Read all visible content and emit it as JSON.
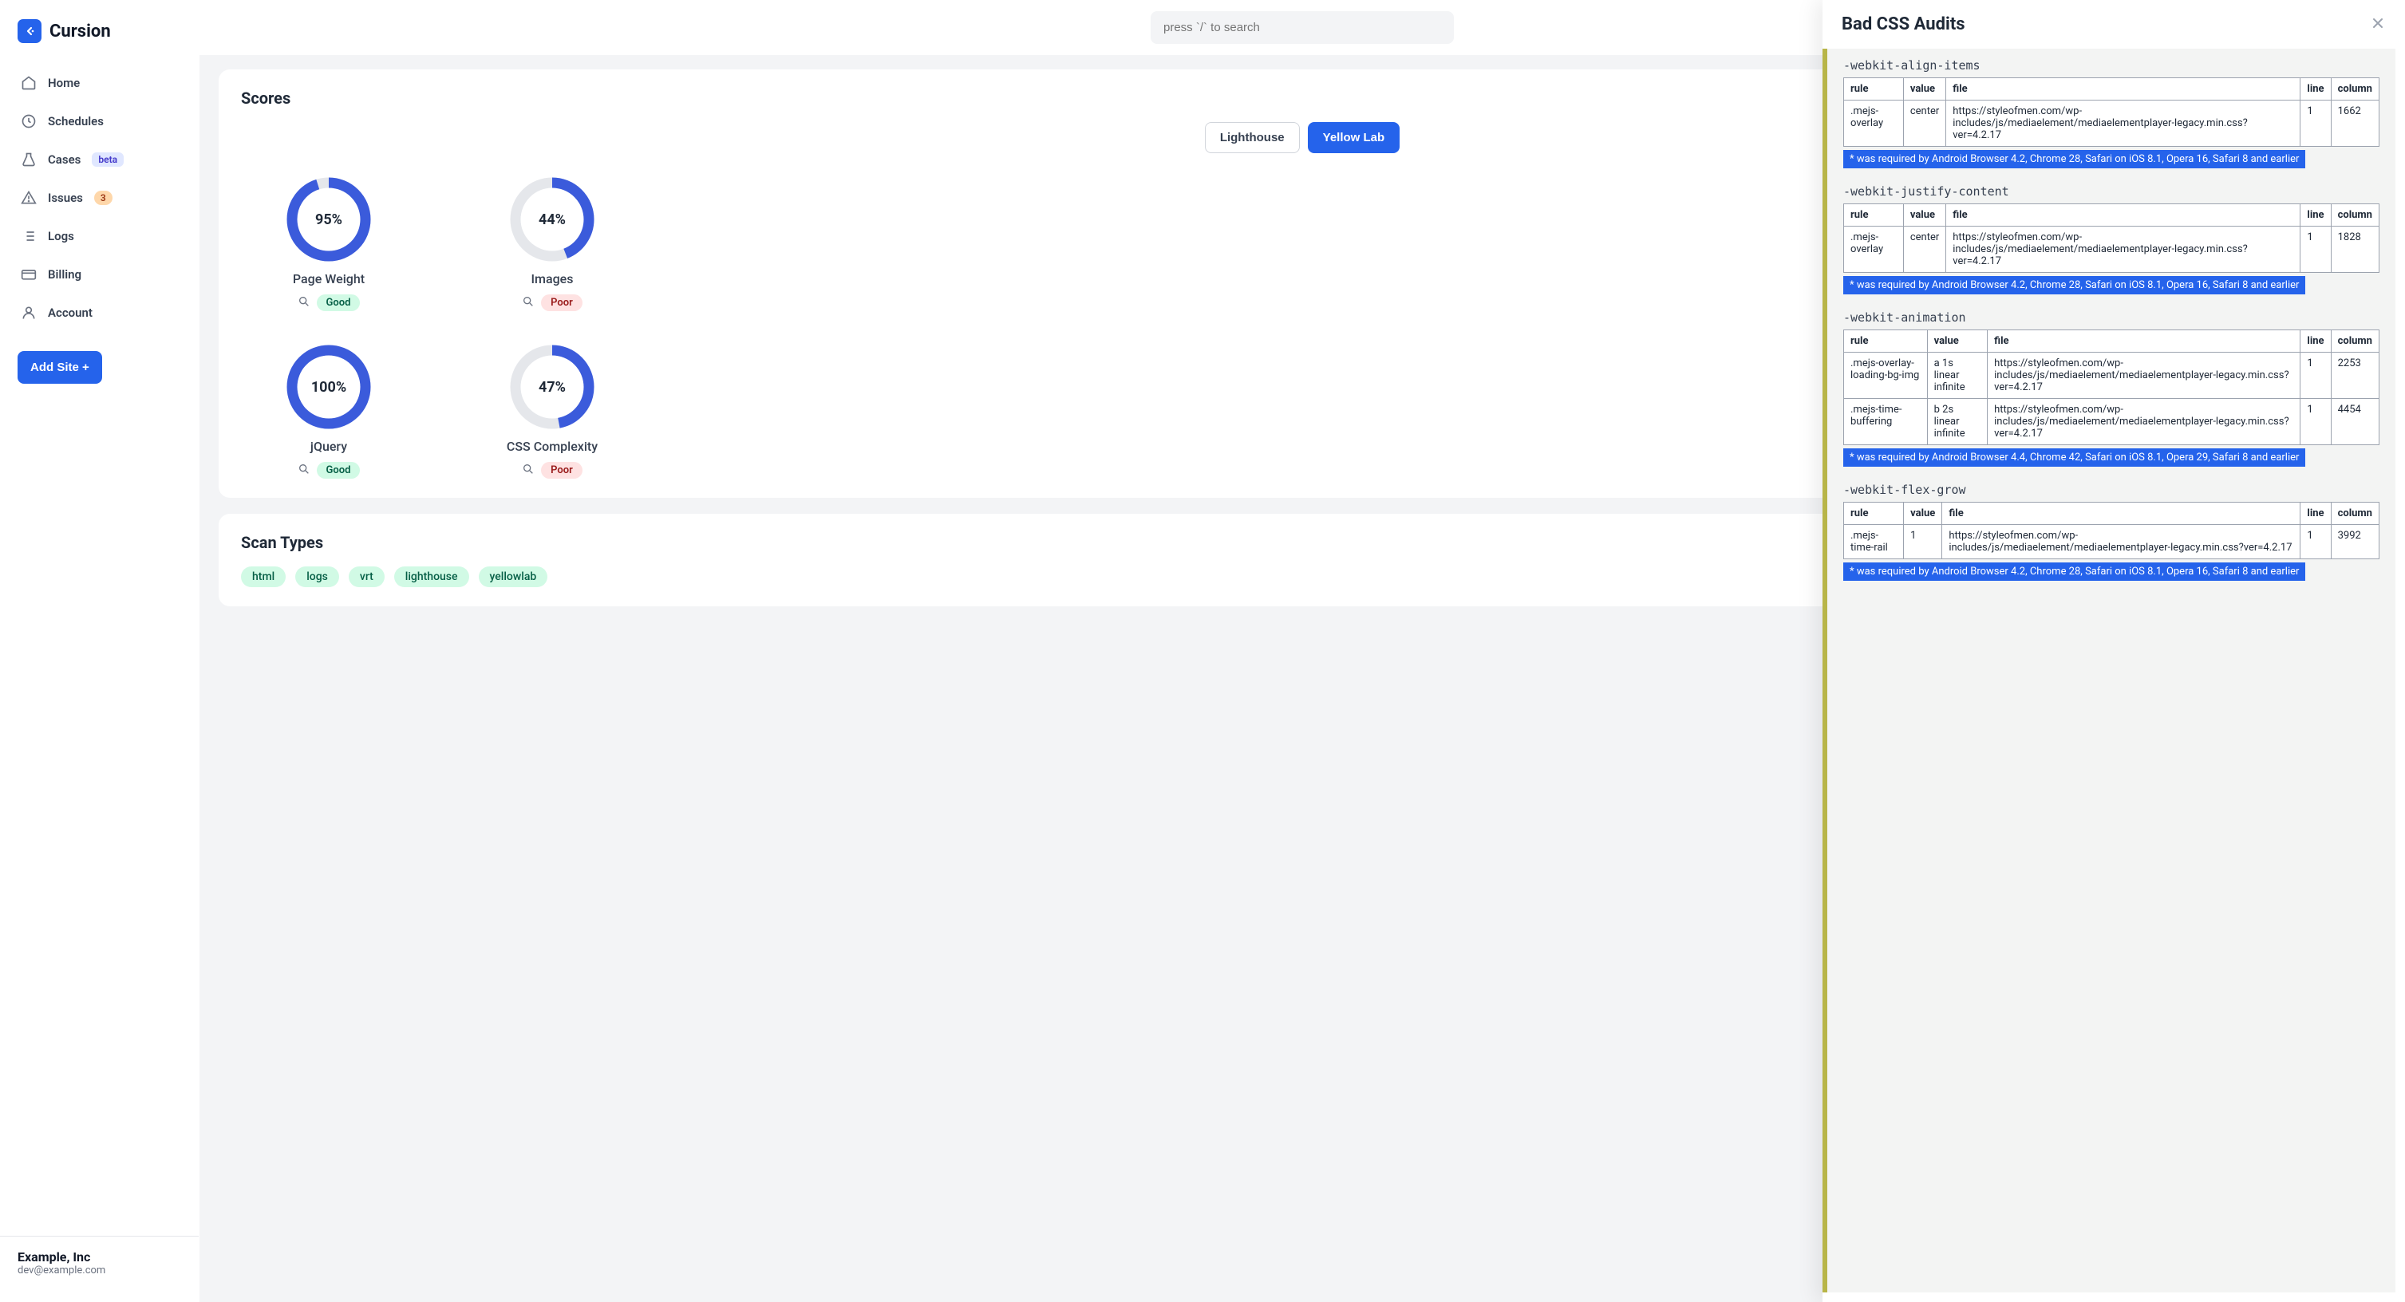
{
  "brand": {
    "name": "Cursion"
  },
  "search": {
    "placeholder": "press `/` to search"
  },
  "sidebar": {
    "items": [
      {
        "label": "Home"
      },
      {
        "label": "Schedules"
      },
      {
        "label": "Cases",
        "badge": "beta"
      },
      {
        "label": "Issues",
        "count": "3"
      },
      {
        "label": "Logs"
      },
      {
        "label": "Billing"
      },
      {
        "label": "Account"
      }
    ],
    "cta": "Add Site  +",
    "footer": {
      "org": "Example, Inc",
      "email": "dev@example.com"
    }
  },
  "scores": {
    "title": "Scores",
    "tabs": [
      {
        "label": "Lighthouse",
        "active": false
      },
      {
        "label": "Yellow Lab",
        "active": true
      }
    ],
    "ring_color": "#3b5bdb",
    "ring_track": "#e5e7eb",
    "items": [
      {
        "pct": 95,
        "pct_text": "95%",
        "label": "Page Weight",
        "status": "Good"
      },
      {
        "pct": 44,
        "pct_text": "44%",
        "label": "Images",
        "status": "Poor"
      },
      {
        "pct": 100,
        "pct_text": "100%",
        "label": "jQuery",
        "status": "Good"
      },
      {
        "pct": 47,
        "pct_text": "47%",
        "label": "CSS Complexity",
        "status": "Poor"
      }
    ]
  },
  "scan_types": {
    "title": "Scan Types",
    "tags": [
      "html",
      "logs",
      "vrt",
      "lighthouse",
      "yellowlab"
    ]
  },
  "panel": {
    "title": "Bad CSS Audits",
    "columns": [
      "rule",
      "value",
      "file",
      "line",
      "column"
    ],
    "sections": [
      {
        "name": "-webkit-align-items",
        "rows": [
          {
            "rule": ".mejs-overlay",
            "value": "center",
            "file": "https://styleofmen.com/wp-includes/js/mediaelement/mediaelementplayer-legacy.min.css?ver=4.2.17",
            "line": "1",
            "column": "1662"
          }
        ],
        "note": "* was required by Android Browser 4.2, Chrome 28, Safari on iOS 8.1, Opera 16, Safari 8 and earlier"
      },
      {
        "name": "-webkit-justify-content",
        "rows": [
          {
            "rule": ".mejs-overlay",
            "value": "center",
            "file": "https://styleofmen.com/wp-includes/js/mediaelement/mediaelementplayer-legacy.min.css?ver=4.2.17",
            "line": "1",
            "column": "1828"
          }
        ],
        "note": "* was required by Android Browser 4.2, Chrome 28, Safari on iOS 8.1, Opera 16, Safari 8 and earlier"
      },
      {
        "name": "-webkit-animation",
        "rows": [
          {
            "rule": ".mejs-overlay-loading-bg-img",
            "value": "a 1s linear infinite",
            "file": "https://styleofmen.com/wp-includes/js/mediaelement/mediaelementplayer-legacy.min.css?ver=4.2.17",
            "line": "1",
            "column": "2253"
          },
          {
            "rule": ".mejs-time-buffering",
            "value": "b 2s linear infinite",
            "file": "https://styleofmen.com/wp-includes/js/mediaelement/mediaelementplayer-legacy.min.css?ver=4.2.17",
            "line": "1",
            "column": "4454"
          }
        ],
        "note": "* was required by Android Browser 4.4, Chrome 42, Safari on iOS 8.1, Opera 29, Safari 8 and earlier"
      },
      {
        "name": "-webkit-flex-grow",
        "rows": [
          {
            "rule": ".mejs-time-rail",
            "value": "1",
            "file": "https://styleofmen.com/wp-includes/js/mediaelement/mediaelementplayer-legacy.min.css?ver=4.2.17",
            "line": "1",
            "column": "3992"
          }
        ],
        "note": "* was required by Android Browser 4.2, Chrome 28, Safari on iOS 8.1, Opera 16, Safari 8 and earlier"
      }
    ]
  }
}
